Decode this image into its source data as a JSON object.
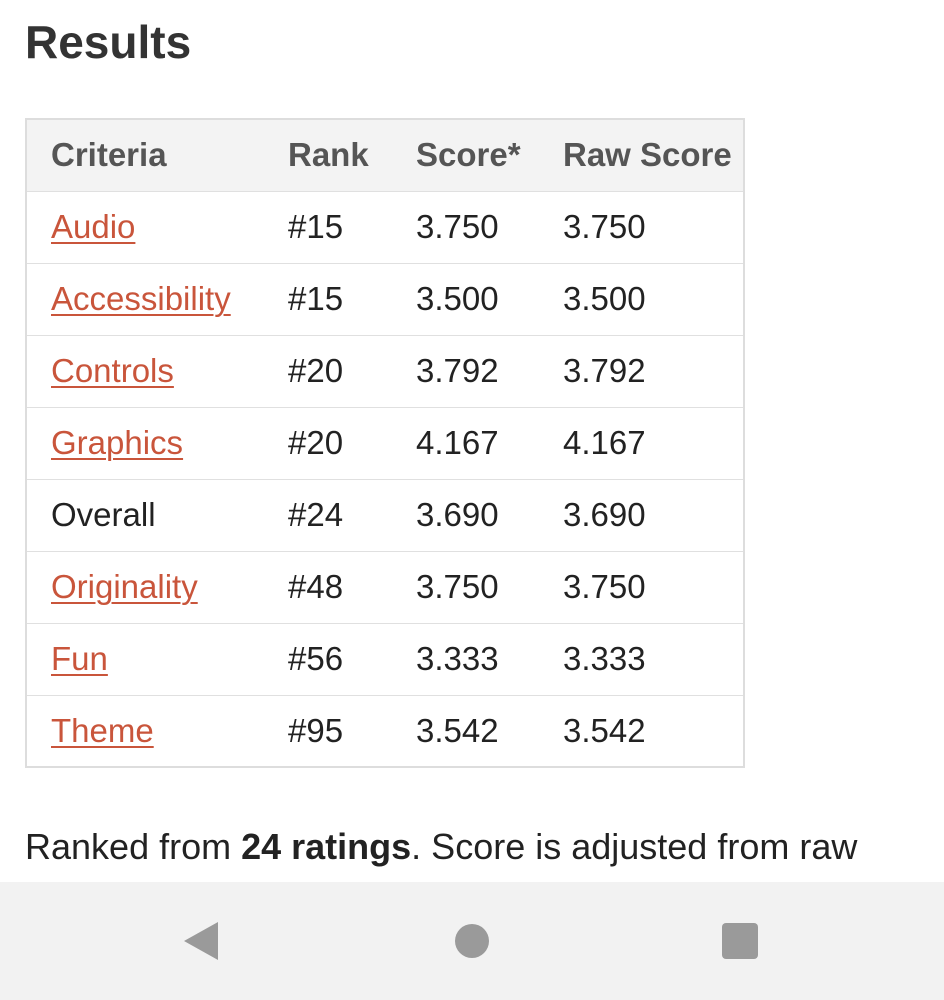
{
  "page": {
    "title": "Results"
  },
  "table": {
    "headers": {
      "criteria": "Criteria",
      "rank": "Rank",
      "score": "Score*",
      "raw_score": "Raw Score"
    },
    "rows": [
      {
        "criteria": "Audio",
        "link": true,
        "rank": "#15",
        "score": "3.750",
        "raw_score": "3.750"
      },
      {
        "criteria": "Accessibility",
        "link": true,
        "rank": "#15",
        "score": "3.500",
        "raw_score": "3.500"
      },
      {
        "criteria": "Controls",
        "link": true,
        "rank": "#20",
        "score": "3.792",
        "raw_score": "3.792"
      },
      {
        "criteria": "Graphics",
        "link": true,
        "rank": "#20",
        "score": "4.167",
        "raw_score": "4.167"
      },
      {
        "criteria": "Overall",
        "link": false,
        "rank": "#24",
        "score": "3.690",
        "raw_score": "3.690"
      },
      {
        "criteria": "Originality",
        "link": true,
        "rank": "#48",
        "score": "3.750",
        "raw_score": "3.750"
      },
      {
        "criteria": "Fun",
        "link": true,
        "rank": "#56",
        "score": "3.333",
        "raw_score": "3.333"
      },
      {
        "criteria": "Theme",
        "link": true,
        "rank": "#95",
        "score": "3.542",
        "raw_score": "3.542"
      }
    ]
  },
  "summary": {
    "prefix": "Ranked from ",
    "ratings": "24 ratings",
    "suffix": ". Score is adjusted from raw"
  },
  "navbar": {
    "icons": [
      "back-icon",
      "home-icon",
      "recents-icon"
    ]
  },
  "colors": {
    "link": "#c9553b",
    "header_bg": "#f3f3f3",
    "navbar_bg": "#f2f2f2",
    "nav_icon": "#9a9a9a"
  }
}
